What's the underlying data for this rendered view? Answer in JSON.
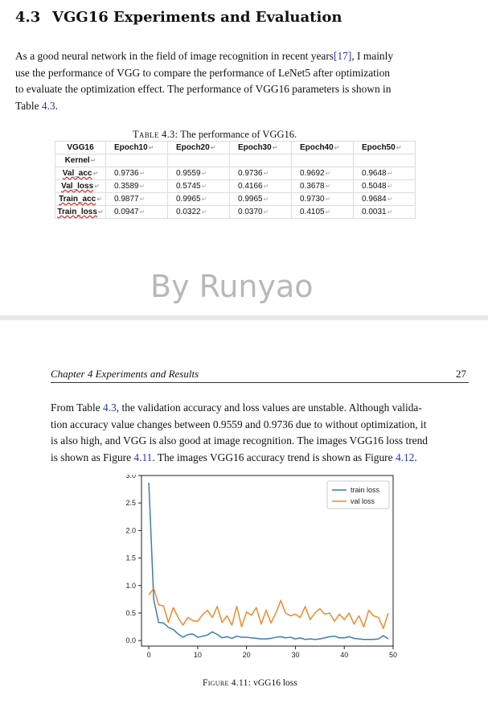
{
  "section": {
    "number": "4.3",
    "title": "VGG16 Experiments and Evaluation"
  },
  "para1": {
    "lines": [
      [
        "As a good neural network in the field of image recognition in recent years",
        "[17]",
        ", I mainly"
      ],
      [
        "use the performance of VGG to compare the performance of LeNet5 after optimization",
        "",
        ""
      ],
      [
        "to evaluate the optimization effect. The performance of VGG16 parameters is shown in",
        "",
        ""
      ],
      [
        "Table ",
        "4.3",
        "."
      ]
    ]
  },
  "table_caption": {
    "label": "Table 4.3:",
    "text": " The performance of VGG16."
  },
  "table": {
    "header_lines": [
      "VGG16",
      "Kernel"
    ],
    "columns": [
      "Epoch10",
      "Epoch20",
      "Epoch30",
      "Epoch40",
      "Epoch50"
    ],
    "rows": [
      {
        "label": "Val_acc",
        "values": [
          "0.9736",
          "0.9559",
          "0.9736",
          "0.9692",
          "0.9648"
        ]
      },
      {
        "label": "Val_loss",
        "values": [
          "0.3589",
          "0.5745",
          "0.4166",
          "0.3678",
          "0.5048"
        ]
      },
      {
        "label": "Train_acc",
        "values": [
          "0.9877",
          "0.9965",
          "0.9965",
          "0.9730",
          "0.9684"
        ]
      },
      {
        "label": "Train_loss",
        "values": [
          "0.0947",
          "0.0322",
          "0.0370",
          "0.4105",
          "0.0031"
        ]
      }
    ]
  },
  "watermark": "By Runyao",
  "running_head": {
    "chapter": "Chapter 4 Experiments and Results",
    "page": "27"
  },
  "para2": {
    "lines": [
      [
        "From Table ",
        "4.3",
        ", the validation accuracy and loss values are unstable. Although valida-"
      ],
      [
        "tion accuracy value changes between 0.9559 and 0.9736 due to without optimization, it",
        "",
        ""
      ],
      [
        "is also high, and VGG is also good at image recognition. The images VGG16 loss trend",
        "",
        ""
      ],
      [
        "is shown as Figure ",
        "4.11",
        ". The images VGG16 accuracy trend is shown as Figure "
      ],
      [
        "",
        "4.12",
        "."
      ]
    ]
  },
  "figure_caption": {
    "label": "Figure 4.11:",
    "text": " vGG16 loss"
  },
  "chart_data": {
    "type": "line",
    "title": "",
    "xlabel": "",
    "ylabel": "",
    "xlim": [
      -1.5,
      50
    ],
    "ylim": [
      -0.1,
      3.0
    ],
    "xticks": [
      "0",
      "10",
      "20",
      "30",
      "40",
      "50"
    ],
    "xtick_values": [
      0,
      10,
      20,
      30,
      40,
      50
    ],
    "yticks": [
      "0.0",
      "0.5",
      "1.0",
      "1.5",
      "2.0",
      "2.5",
      "3.0"
    ],
    "ytick_values": [
      0,
      0.5,
      1.0,
      1.5,
      2.0,
      2.5,
      3.0
    ],
    "grid": false,
    "legend_position": "top-right",
    "series": [
      {
        "name": "train loss",
        "color": "#3a7db4",
        "x": [
          0,
          1,
          2,
          3,
          4,
          5,
          6,
          7,
          8,
          9,
          10,
          11,
          12,
          13,
          14,
          15,
          16,
          17,
          18,
          19,
          20,
          21,
          22,
          23,
          24,
          25,
          26,
          27,
          28,
          29,
          30,
          31,
          32,
          33,
          34,
          35,
          36,
          37,
          38,
          39,
          40,
          41,
          42,
          43,
          44,
          45,
          46,
          47,
          48,
          49
        ],
        "y": [
          2.87,
          0.75,
          0.33,
          0.32,
          0.24,
          0.2,
          0.12,
          0.06,
          0.11,
          0.12,
          0.06,
          0.08,
          0.1,
          0.16,
          0.11,
          0.05,
          0.07,
          0.04,
          0.08,
          0.06,
          0.06,
          0.05,
          0.04,
          0.03,
          0.03,
          0.04,
          0.06,
          0.07,
          0.05,
          0.06,
          0.03,
          0.05,
          0.02,
          0.03,
          0.02,
          0.03,
          0.05,
          0.07,
          0.08,
          0.05,
          0.05,
          0.07,
          0.04,
          0.03,
          0.02,
          0.02,
          0.02,
          0.03,
          0.09,
          0.03
        ]
      },
      {
        "name": "val loss",
        "color": "#f08a2a",
        "x": [
          0,
          1,
          2,
          3,
          4,
          5,
          6,
          7,
          8,
          9,
          10,
          11,
          12,
          13,
          14,
          15,
          16,
          17,
          18,
          19,
          20,
          21,
          22,
          23,
          24,
          25,
          26,
          27,
          28,
          29,
          30,
          31,
          32,
          33,
          34,
          35,
          36,
          37,
          38,
          39,
          40,
          41,
          42,
          43,
          44,
          45,
          46,
          47,
          48,
          49
        ],
        "y": [
          0.83,
          0.95,
          0.65,
          0.63,
          0.33,
          0.6,
          0.42,
          0.28,
          0.42,
          0.36,
          0.35,
          0.47,
          0.55,
          0.42,
          0.62,
          0.33,
          0.45,
          0.28,
          0.62,
          0.25,
          0.52,
          0.46,
          0.6,
          0.3,
          0.55,
          0.32,
          0.5,
          0.73,
          0.5,
          0.45,
          0.48,
          0.42,
          0.62,
          0.38,
          0.5,
          0.58,
          0.48,
          0.5,
          0.35,
          0.48,
          0.38,
          0.5,
          0.3,
          0.45,
          0.25,
          0.55,
          0.45,
          0.42,
          0.22,
          0.5
        ]
      }
    ]
  }
}
